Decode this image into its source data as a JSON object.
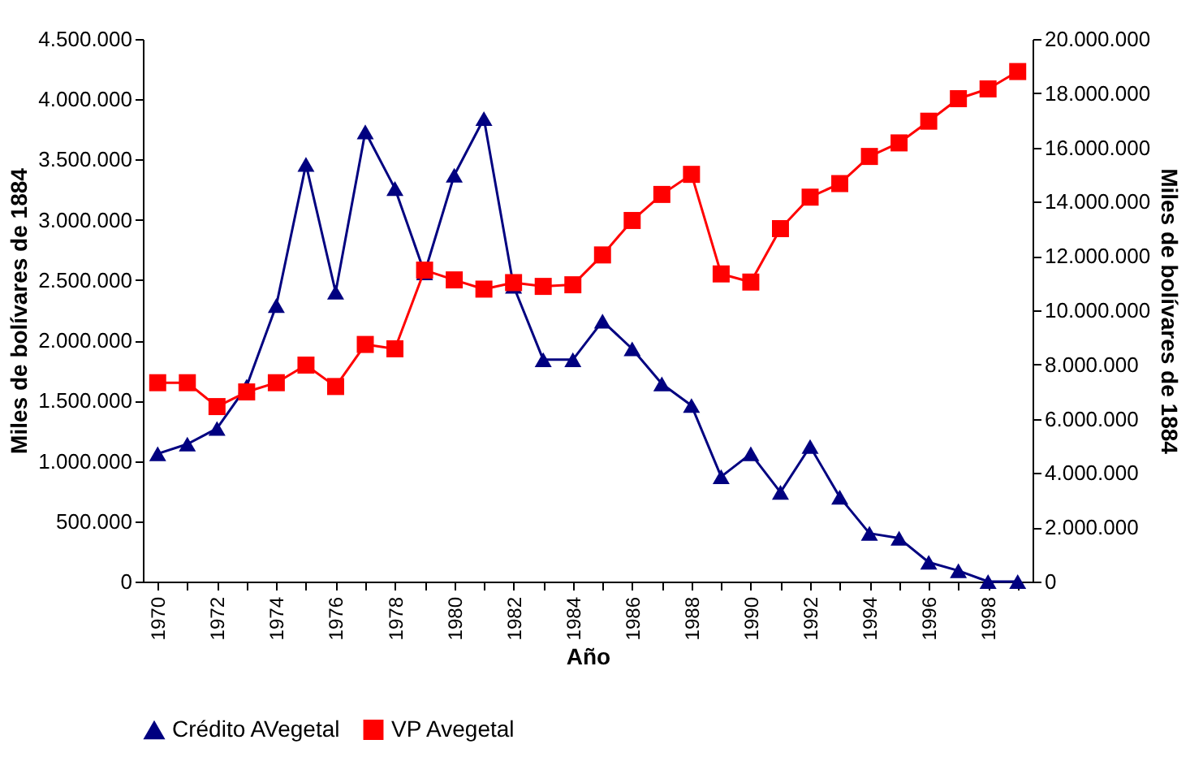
{
  "chart_data": {
    "type": "line",
    "xlabel": "Año",
    "ylabel": "Miles de bolívares de 1884",
    "y2label": "Miles de bolívares de 1884",
    "categories": [
      "1970",
      null,
      "1972",
      null,
      "1974",
      null,
      "1976",
      null,
      "1978",
      null,
      "1980",
      null,
      "1982",
      null,
      "1984",
      null,
      "1986",
      null,
      "1988",
      null,
      "1990",
      null,
      "1992",
      null,
      "1994",
      null,
      "1996",
      null,
      "1998",
      null
    ],
    "series": [
      {
        "name": "Crédito AVegetal",
        "color": "#000080",
        "marker": "triangle",
        "values": [
          1060000,
          1140000,
          1270000,
          1620000,
          2290000,
          3460000,
          2400000,
          3730000,
          3260000,
          2560000,
          3370000,
          3840000,
          2450000,
          1840000,
          1840000,
          2160000,
          1930000,
          1640000,
          1460000,
          870000,
          1060000,
          740000,
          1120000,
          700000,
          400000,
          360000,
          160000,
          90000,
          0,
          0
        ]
      },
      {
        "name": "VP Avegetal",
        "color": "#ff0000",
        "marker": "square",
        "axis": "y2",
        "values": [
          7330000,
          7330000,
          6450000,
          6990000,
          7330000,
          7980000,
          7190000,
          8740000,
          8580000,
          11480000,
          11120000,
          10780000,
          11020000,
          10880000,
          10940000,
          12040000,
          13310000,
          14270000,
          15010000,
          11340000,
          11040000,
          13010000,
          14170000,
          14670000,
          15670000,
          16170000,
          16970000,
          17800000,
          18160000,
          18800000
        ]
      }
    ],
    "ylim": [
      0,
      4500000
    ],
    "yticks": [
      0,
      {
        "value": 500000,
        "label": "500.000"
      },
      {
        "value": 1000000,
        "label": "1.000.000"
      },
      {
        "value": 1500000,
        "label": "1.500.000"
      },
      {
        "value": 2000000,
        "label": "2.000.000"
      },
      {
        "value": 2500000,
        "label": "2.500.000"
      },
      {
        "value": 3000000,
        "label": "3.000.000"
      },
      {
        "value": 3500000,
        "label": "3.500.000"
      },
      {
        "value": 4000000,
        "label": "4.000.000"
      },
      {
        "value": 4500000,
        "label": "4.500.000"
      }
    ],
    "y2lim": [
      0,
      20000000
    ],
    "y2ticks": [
      0,
      {
        "value": 2000000,
        "label": "2.000.000"
      },
      {
        "value": 4000000,
        "label": "4.000.000"
      },
      {
        "value": 6000000,
        "label": "6.000.000"
      },
      {
        "value": 8000000,
        "label": "8.000.000"
      },
      {
        "value": 10000000,
        "label": "10.000.000"
      },
      {
        "value": 12000000,
        "label": "12.000.000"
      },
      {
        "value": 14000000,
        "label": "14.000.000"
      },
      {
        "value": 16000000,
        "label": "16.000.000"
      },
      {
        "value": 18000000,
        "label": "18.000.000"
      },
      {
        "value": 20000000,
        "label": "20.000.000"
      }
    ],
    "grid": false,
    "legend": "bottom"
  }
}
